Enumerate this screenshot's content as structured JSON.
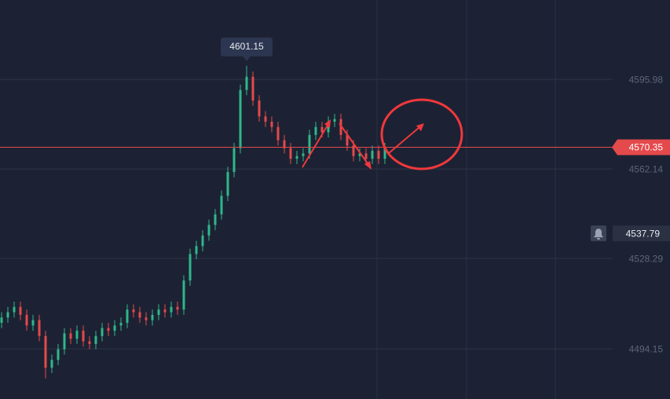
{
  "chart_data": {
    "type": "candlestick",
    "open": [
      4504,
      4506,
      4508,
      4510,
      4507,
      4503,
      4505,
      4499,
      4487,
      4490,
      4494,
      4500,
      4498,
      4501,
      4497,
      4496,
      4499,
      4502,
      4501,
      4503,
      4504,
      4509,
      4508,
      4506,
      4505,
      4507,
      4509,
      4508,
      4510,
      4509,
      4520,
      4530,
      4533,
      4537,
      4541,
      4545,
      4552,
      4561,
      4570,
      4592,
      4597,
      4588,
      4582,
      4580,
      4578,
      4573,
      4570,
      4566,
      4567,
      4568,
      4575,
      4578,
      4576,
      4580,
      4581,
      4575,
      4571,
      4567,
      4568,
      4566,
      4569,
      4566
    ],
    "high": [
      4508,
      4510,
      4512,
      4512,
      4509,
      4507,
      4507,
      4501,
      4492,
      4496,
      4502,
      4502,
      4503,
      4503,
      4499,
      4501,
      4504,
      4504,
      4505,
      4506,
      4511,
      4511,
      4510,
      4508,
      4509,
      4511,
      4511,
      4512,
      4512,
      4522,
      4532,
      4535,
      4539,
      4543,
      4547,
      4554,
      4563,
      4572,
      4594,
      4601.15,
      4599,
      4590,
      4584,
      4582,
      4580,
      4575,
      4572,
      4569,
      4570,
      4577,
      4580,
      4580,
      4582,
      4583,
      4583,
      4577,
      4573,
      4570,
      4570,
      4571,
      4571,
      4572
    ],
    "low": [
      4502,
      4504,
      4506,
      4505,
      4501,
      4501,
      4497,
      4483,
      4485,
      4488,
      4492,
      4496,
      4496,
      4495,
      4494,
      4494,
      4497,
      4499,
      4499,
      4501,
      4502,
      4506,
      4504,
      4503,
      4503,
      4505,
      4506,
      4506,
      4507,
      4507,
      4518,
      4528,
      4531,
      4535,
      4539,
      4543,
      4550,
      4559,
      4568,
      4590,
      4586,
      4580,
      4578,
      4576,
      4571,
      4568,
      4564,
      4564,
      4565,
      4566,
      4573,
      4574,
      4574,
      4578,
      4573,
      4569,
      4565,
      4565,
      4564,
      4564,
      4564,
      4564
    ],
    "close": [
      4506,
      4508,
      4510,
      4507,
      4503,
      4505,
      4499,
      4487,
      4490,
      4494,
      4500,
      4498,
      4501,
      4497,
      4496,
      4499,
      4502,
      4501,
      4503,
      4504,
      4509,
      4508,
      4506,
      4505,
      4507,
      4509,
      4508,
      4510,
      4509,
      4520,
      4530,
      4533,
      4537,
      4541,
      4545,
      4552,
      4561,
      4570,
      4592,
      4597,
      4588,
      4582,
      4580,
      4578,
      4573,
      4570,
      4566,
      4567,
      4568,
      4575,
      4578,
      4576,
      4580,
      4581,
      4575,
      4571,
      4567,
      4568,
      4566,
      4569,
      4566,
      4570
    ],
    "up_color": "#2fb78a",
    "down_color": "#e4494c",
    "ylim": [
      4475.2,
      4626.0
    ],
    "yticks": [
      4494.15,
      4528.29,
      4562.14,
      4595.98
    ],
    "grid": true,
    "last_price": 4570.35,
    "alert_price": 4537.79,
    "peak_index": 39
  }
}
